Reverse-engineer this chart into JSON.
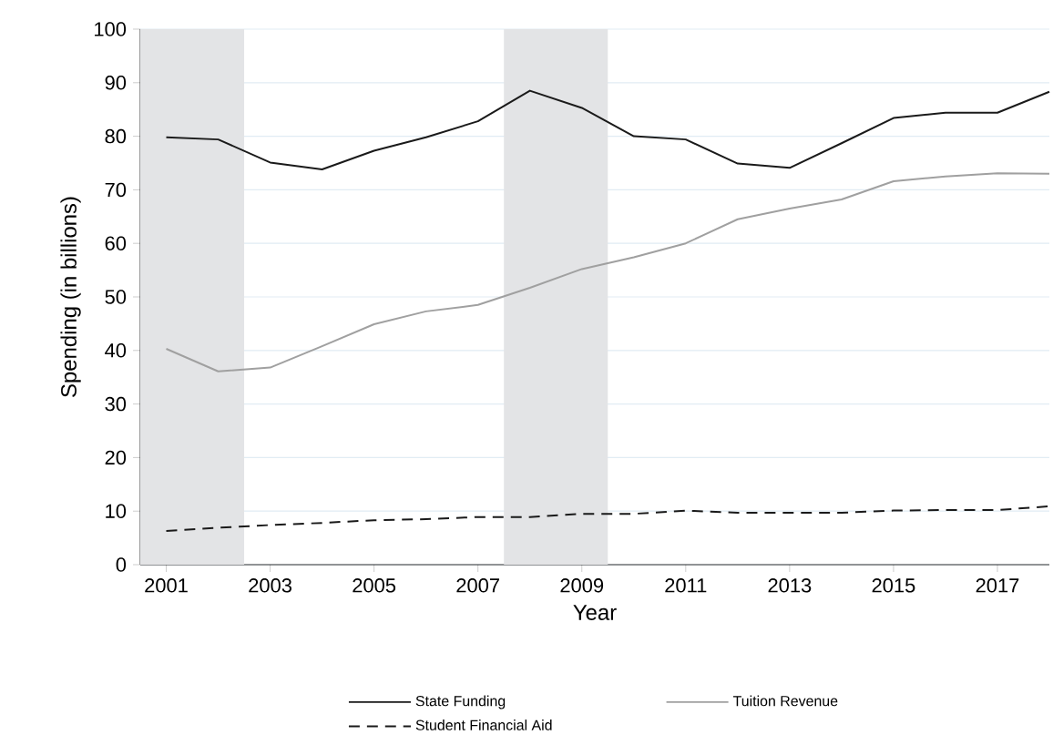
{
  "chart_data": {
    "type": "line",
    "xlabel": "Year",
    "ylabel": "Spending (in billions)",
    "x": [
      2001,
      2002,
      2003,
      2004,
      2005,
      2006,
      2007,
      2008,
      2009,
      2010,
      2011,
      2012,
      2013,
      2014,
      2015,
      2016,
      2017,
      2018
    ],
    "series": [
      {
        "name": "State Funding",
        "color": "#1a1a1a",
        "line_style": "solid",
        "values": [
          79.8,
          79.4,
          75.1,
          73.8,
          77.3,
          79.8,
          82.8,
          88.5,
          85.3,
          80.0,
          79.4,
          74.9,
          74.1,
          78.7,
          83.4,
          84.4,
          84.4,
          88.3
        ]
      },
      {
        "name": "Tuition Revenue",
        "color": "#a0a0a0",
        "line_style": "solid",
        "values": [
          40.3,
          36.1,
          36.8,
          40.8,
          44.9,
          47.3,
          48.5,
          51.7,
          55.2,
          57.4,
          60.0,
          64.5,
          66.5,
          68.2,
          71.6,
          72.5,
          73.1,
          73.0
        ]
      },
      {
        "name": "Student Financial Aid",
        "color": "#1a1a1a",
        "line_style": "dashed",
        "values": [
          6.3,
          6.9,
          7.4,
          7.8,
          8.3,
          8.5,
          8.9,
          8.9,
          9.5,
          9.5,
          10.1,
          9.7,
          9.7,
          9.7,
          10.1,
          10.2,
          10.2,
          10.9
        ]
      }
    ],
    "xlim": [
      2000.5,
      2018
    ],
    "xticks": [
      2001,
      2003,
      2005,
      2007,
      2009,
      2011,
      2013,
      2015,
      2017
    ],
    "ylim": [
      0,
      100
    ],
    "yticks": [
      0,
      10,
      20,
      30,
      40,
      50,
      60,
      70,
      80,
      90,
      100
    ],
    "bands": [
      {
        "axis": "x",
        "from": 2000.5,
        "to": 2002.5,
        "color": "#e3e4e6"
      },
      {
        "axis": "x",
        "from": 2007.5,
        "to": 2009.5,
        "color": "#e3e4e6"
      }
    ],
    "grid": "y",
    "legend": "bottom"
  }
}
